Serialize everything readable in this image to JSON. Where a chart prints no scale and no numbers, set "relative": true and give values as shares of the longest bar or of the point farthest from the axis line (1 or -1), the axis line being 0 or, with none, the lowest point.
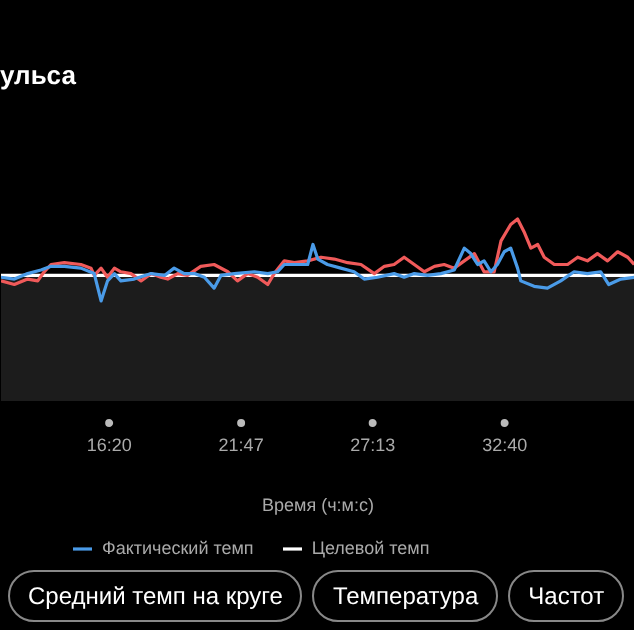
{
  "chart_data": {
    "type": "line",
    "title": "ульса",
    "xlabel": "Время (ч:м:с)",
    "relative": true,
    "legend": "bottom",
    "grid": false,
    "xlim": [
      712,
      2283
    ],
    "xticks": [
      {
        "value": 980,
        "label": "16:20"
      },
      {
        "value": 1307,
        "label": "21:47"
      },
      {
        "value": 1633,
        "label": "27:13"
      },
      {
        "value": 1960,
        "label": "32:40"
      }
    ],
    "series": [
      {
        "type": "area",
        "name": "Целевой темп",
        "color": "#ffffff",
        "x": [
          712,
          2283
        ],
        "values": [
          0.69,
          0.69
        ]
      },
      {
        "color": "#f05a5a",
        "x": [
          712,
          745,
          778,
          803,
          819,
          836,
          869,
          910,
          935,
          943,
          960,
          976,
          993,
          1009,
          1034,
          1059,
          1084,
          1108,
          1125,
          1150,
          1174,
          1207,
          1240,
          1274,
          1298,
          1323,
          1348,
          1373,
          1389,
          1414,
          1439,
          1472,
          1505,
          1538,
          1571,
          1604,
          1637,
          1662,
          1686,
          1711,
          1736,
          1761,
          1786,
          1810,
          1835,
          1860,
          1885,
          1909,
          1934,
          1951,
          1975,
          1992,
          2008,
          2025,
          2042,
          2058,
          2083,
          2116,
          2141,
          2165,
          2190,
          2215,
          2240,
          2265,
          2281
        ],
        "values": [
          0.66,
          0.64,
          0.67,
          0.66,
          0.71,
          0.75,
          0.76,
          0.75,
          0.73,
          0.69,
          0.73,
          0.68,
          0.73,
          0.71,
          0.7,
          0.66,
          0.7,
          0.68,
          0.67,
          0.7,
          0.69,
          0.74,
          0.75,
          0.71,
          0.66,
          0.7,
          0.68,
          0.64,
          0.7,
          0.77,
          0.76,
          0.77,
          0.79,
          0.78,
          0.76,
          0.75,
          0.7,
          0.74,
          0.75,
          0.79,
          0.75,
          0.71,
          0.74,
          0.75,
          0.73,
          0.77,
          0.81,
          0.71,
          0.71,
          0.88,
          0.97,
          1.0,
          0.93,
          0.84,
          0.86,
          0.79,
          0.75,
          0.75,
          0.79,
          0.77,
          0.81,
          0.77,
          0.82,
          0.79,
          0.75
        ]
      },
      {
        "name": "Фактический темп",
        "color": "#4a9be8",
        "x": [
          712,
          745,
          778,
          811,
          836,
          869,
          910,
          943,
          960,
          976,
          993,
          1009,
          1042,
          1084,
          1117,
          1141,
          1166,
          1191,
          1216,
          1240,
          1257,
          1290,
          1340,
          1373,
          1397,
          1414,
          1439,
          1472,
          1485,
          1497,
          1521,
          1554,
          1587,
          1612,
          1645,
          1686,
          1711,
          1736,
          1769,
          1802,
          1835,
          1860,
          1876,
          1893,
          1909,
          1926,
          1942,
          1959,
          1975,
          1992,
          2000,
          2033,
          2066,
          2099,
          2132,
          2165,
          2198,
          2218,
          2248,
          2281
        ],
        "values": [
          0.68,
          0.67,
          0.7,
          0.72,
          0.74,
          0.74,
          0.73,
          0.7,
          0.55,
          0.66,
          0.7,
          0.66,
          0.67,
          0.7,
          0.69,
          0.73,
          0.7,
          0.7,
          0.68,
          0.62,
          0.69,
          0.7,
          0.71,
          0.7,
          0.71,
          0.75,
          0.75,
          0.75,
          0.86,
          0.78,
          0.75,
          0.73,
          0.71,
          0.67,
          0.68,
          0.7,
          0.68,
          0.7,
          0.69,
          0.7,
          0.72,
          0.84,
          0.81,
          0.75,
          0.77,
          0.71,
          0.75,
          0.82,
          0.84,
          0.73,
          0.66,
          0.63,
          0.62,
          0.66,
          0.71,
          0.7,
          0.71,
          0.64,
          0.67,
          0.68
        ]
      }
    ],
    "annotations": [
      "Средний темп на круге",
      "Температура",
      "Частот"
    ]
  }
}
